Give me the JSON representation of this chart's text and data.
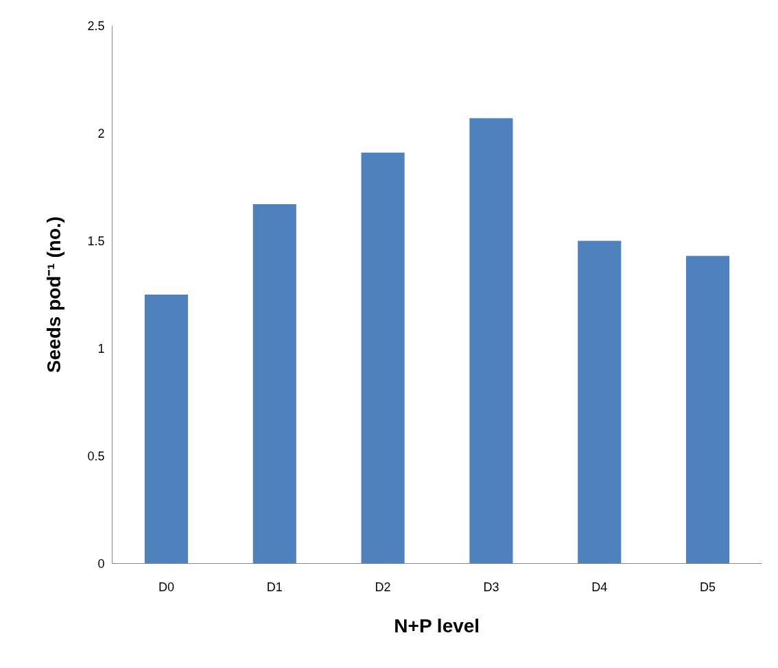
{
  "chart_data": {
    "type": "bar",
    "xlabel": "N+P level",
    "ylabel": "Seeds pod⁻¹ (no.)",
    "categories": [
      "D0",
      "D1",
      "D2",
      "D3",
      "D4",
      "D5"
    ],
    "values": [
      1.25,
      1.67,
      1.91,
      2.07,
      1.5,
      1.43
    ],
    "color": "#4f81bd",
    "ylim": [
      0,
      2.5
    ],
    "yticks": [
      0,
      0.5,
      1,
      1.5,
      2,
      2.5
    ],
    "grid": false
  }
}
